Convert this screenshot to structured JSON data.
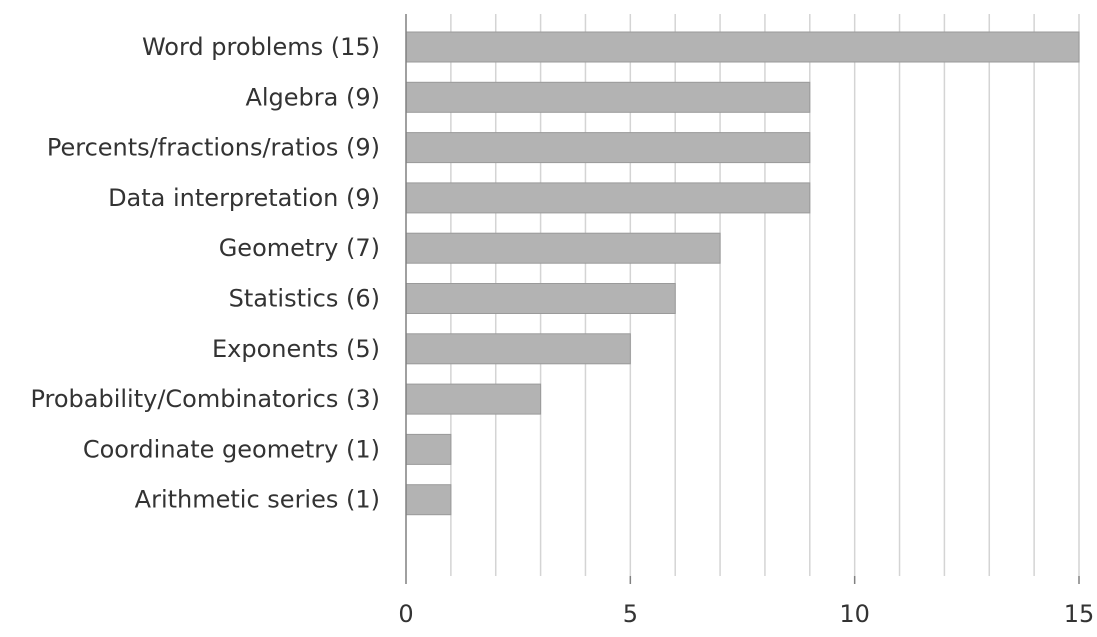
{
  "chart_data": {
    "type": "bar",
    "orientation": "horizontal",
    "title": "",
    "xlabel": "",
    "ylabel": "",
    "categories": [
      "Word problems (15)",
      "Algebra (9)",
      "Percents/fractions/ratios (9)",
      "Data interpretation (9)",
      "Geometry (7)",
      "Statistics (6)",
      "Exponents (5)",
      "Probability/Combinatorics (3)",
      "Coordinate geometry (1)",
      "Arithmetic series (1)"
    ],
    "values": [
      15,
      9,
      9,
      9,
      7,
      6,
      5,
      3,
      1,
      1
    ],
    "xlim": [
      0,
      15
    ],
    "x_ticks": [
      "0",
      "5",
      "10",
      "15"
    ],
    "x_tick_values": [
      0,
      5,
      10,
      15
    ],
    "grid_step": 1,
    "grid": true,
    "legend": "none",
    "colors": {
      "bar_fill": "#b3b3b3",
      "bar_stroke": "#9a9a9a",
      "grid": "#d4d4d4",
      "axis": "#808080",
      "text": "#333333"
    }
  }
}
